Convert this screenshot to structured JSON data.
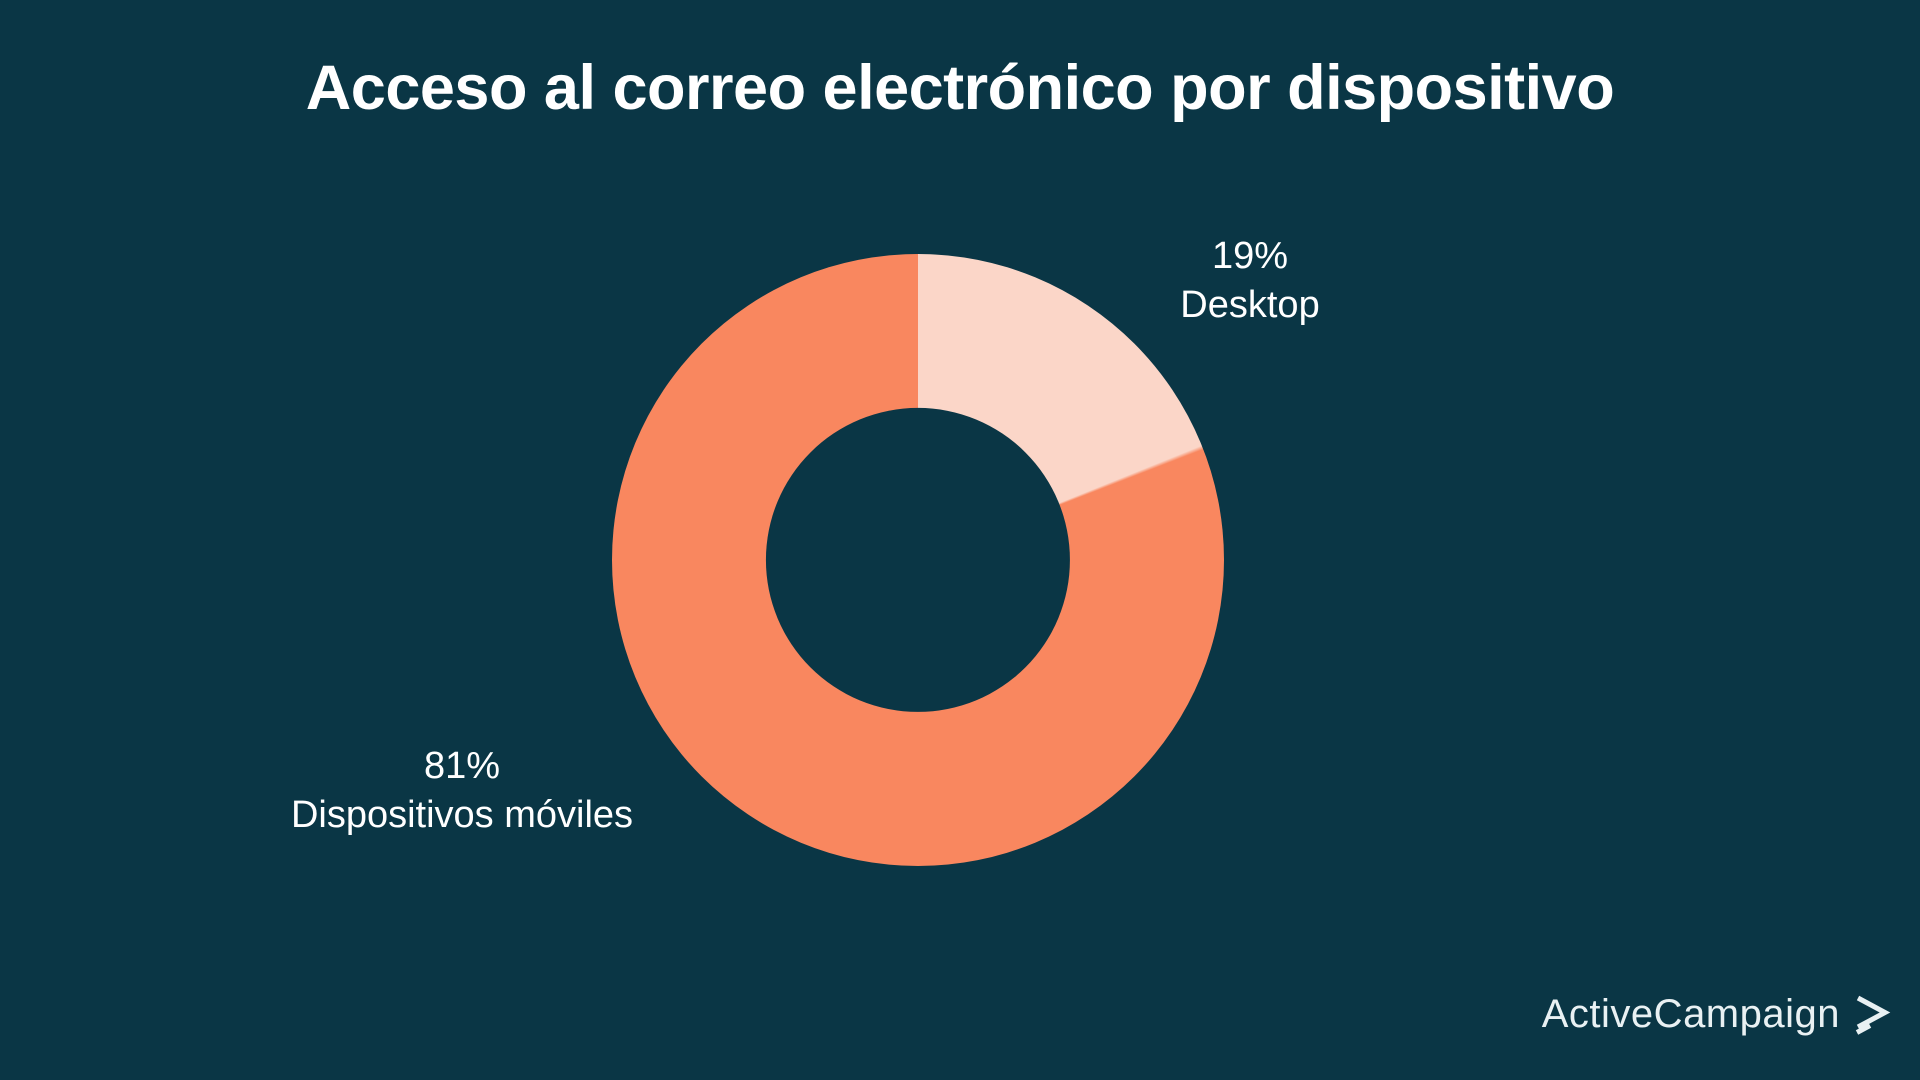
{
  "page": {
    "background_color": "#0A3645",
    "title": "Acceso al correo electrónico por dispositivo",
    "title_color": "#FFFFFF"
  },
  "chart_data": {
    "type": "pie",
    "subtype": "donut",
    "title": "Acceso al correo electrónico por dispositivo",
    "segments": [
      {
        "label": "Desktop",
        "value": 19,
        "percent_label": "19%",
        "color": "#FBD6C8"
      },
      {
        "label": "Dispositivos móviles",
        "value": 81,
        "percent_label": "81%",
        "color": "#F9875F"
      }
    ],
    "start_angle_deg": 0,
    "direction": "clockwise",
    "inner_radius_ratio": 0.497,
    "hole_color": "#0A3645",
    "legend_position": "outside-labels",
    "label_color": "#FFFFFF"
  },
  "branding": {
    "logo_text": "ActiveCampaign",
    "logo_mark": "arrow-right-chevron",
    "logo_color": "#E9F1F3"
  }
}
